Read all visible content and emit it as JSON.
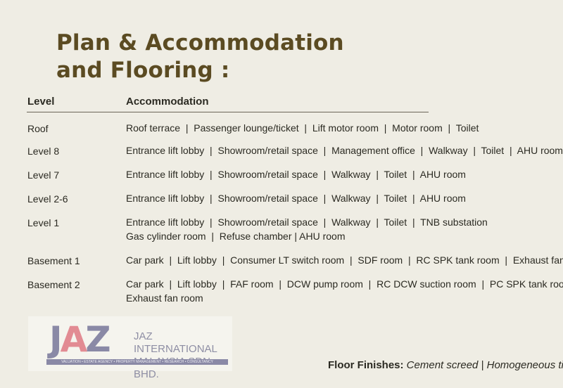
{
  "title": {
    "line1": "Plan & Accommodation",
    "line2": "and Flooring :"
  },
  "table": {
    "headers": {
      "level": "Level",
      "accommodation": "Accommodation"
    },
    "rows": [
      {
        "level": "Roof",
        "lines": [
          "Roof terrace  |  Passenger lounge/ticket  |  Lift motor room  |  Motor room  |  Toilet"
        ]
      },
      {
        "level": "Level 8",
        "lines": [
          "Entrance lift lobby  |  Showroom/retail space  |  Management office  |  Walkway  |  Toilet  |  AHU room"
        ]
      },
      {
        "level": "Level 7",
        "lines": [
          "Entrance lift lobby  |  Showroom/retail space  |  Walkway  |  Toilet  |  AHU room"
        ]
      },
      {
        "level": "Level 2-6",
        "lines": [
          "Entrance lift lobby  |  Showroom/retail space  |  Walkway  |  Toilet  |  AHU room"
        ]
      },
      {
        "level": "Level 1",
        "lines": [
          "Entrance lift lobby  |  Showroom/retail space  |  Walkway  |  Toilet  |  TNB substation",
          "Gas cylinder room  |  Refuse chamber | AHU room"
        ]
      },
      {
        "level": "Basement 1",
        "lines": [
          "Car park  |  Lift lobby  |  Consumer LT switch room  |  SDF room  |  RC SPK tank room  |  Exhaust fan room"
        ]
      },
      {
        "level": "Basement 2",
        "lines": [
          "Car park  |  Lift lobby  |  FAF room  |  DCW pump room  |  RC DCW suction room  |  PC SPK tank room",
          "Exhaust fan room"
        ]
      }
    ]
  },
  "logo": {
    "mark": "JAZ",
    "company_line1": "JAZ INTERNATIONAL",
    "company_line2": "MALAYSIA SDN. BHD.",
    "services": "VALUATION  •  ESTATE AGENCY  •  PROPERTY MANAGEMENT  •  RESEARCH  •  CONSULTANCY"
  },
  "floor_finishes": {
    "label": "Floor Finishes:",
    "value": " Cement screed  |  Homogeneous til"
  },
  "colors": {
    "background": "#efede4",
    "title": "#5b4b22",
    "logo_blue": "#8a89a6",
    "logo_pink": "#e28b93"
  }
}
